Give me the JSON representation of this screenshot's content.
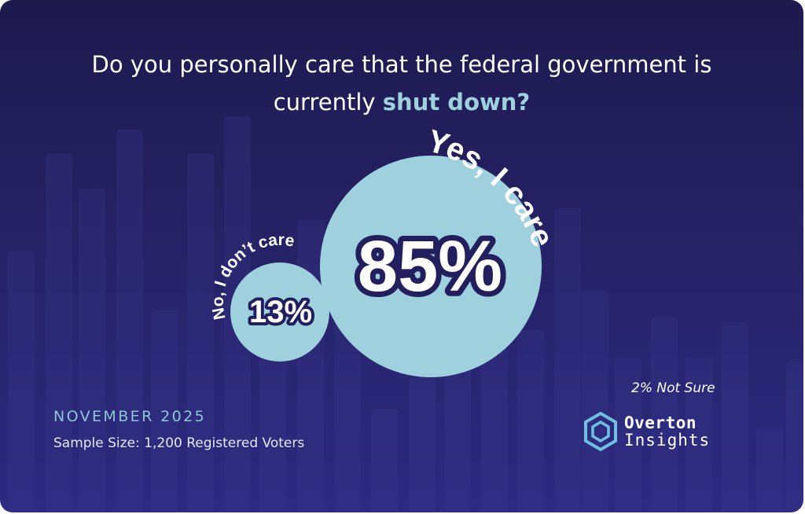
{
  "title": {
    "line1": "Do you personally care that the federal government is",
    "line2_prefix": "currently ",
    "line2_highlight": "shut down?"
  },
  "chart_data": {
    "type": "bubble",
    "title": "Do you personally care that the federal government is currently shut down?",
    "series": [
      {
        "label": "Yes, I care",
        "value": 85,
        "value_label": "85%"
      },
      {
        "label": "No, I don’t care",
        "value": 13,
        "value_label": "13%"
      }
    ],
    "note": "2% Not Sure",
    "colors": {
      "background": "#231f5e",
      "bubble": "#9ed1dd",
      "value_text": "#ffffff",
      "value_outline": "#231f5e",
      "highlight": "#9ed1dd"
    }
  },
  "footer": {
    "date": "NOVEMBER 2025",
    "sample": "Sample Size:  1,200 Registered Voters"
  },
  "logo": {
    "line1": "Overton",
    "line2": "Insights",
    "icon": "hexagon-cube-icon"
  }
}
